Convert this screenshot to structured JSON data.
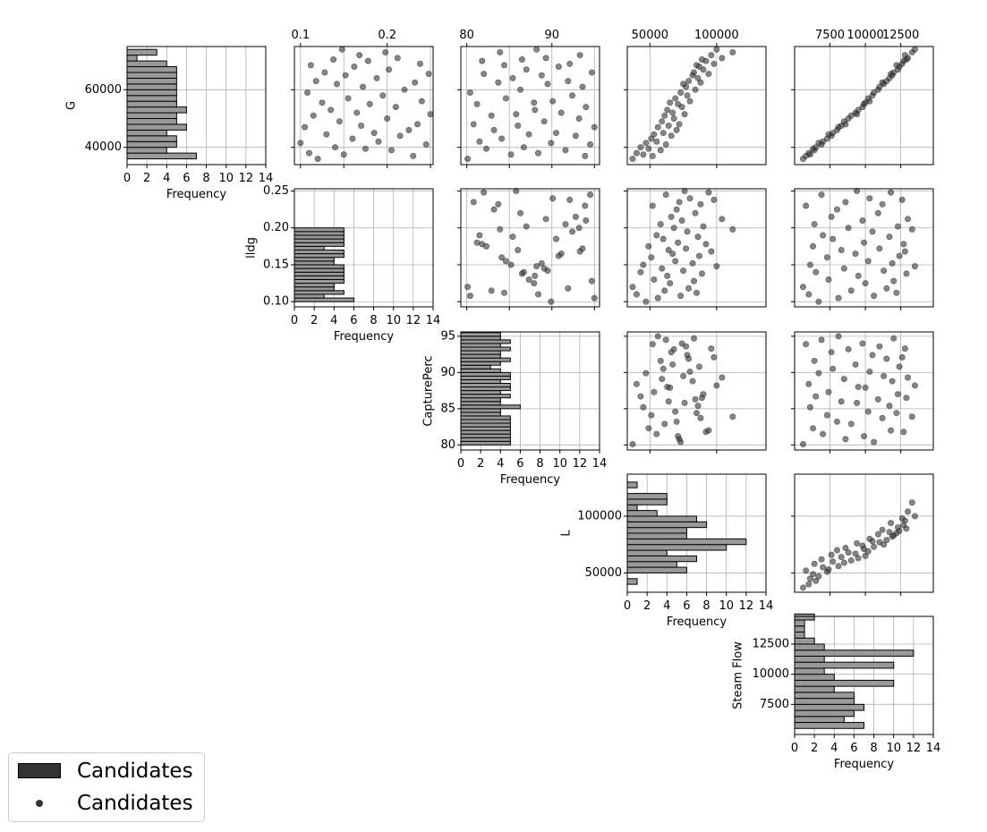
{
  "chart_data": {
    "type": "scatter",
    "title": "",
    "variables": [
      {
        "name": "G",
        "range": [
          34000,
          75000
        ],
        "ticks": [
          40000,
          60000
        ],
        "tick_labels": [
          "40000",
          "60000"
        ]
      },
      {
        "name": "lldg",
        "range": [
          0.093,
          0.253
        ],
        "ticks": [
          0.1,
          0.15,
          0.2,
          0.25
        ],
        "tick_labels": [
          "0.10",
          "0.15",
          "0.20",
          "0.25"
        ],
        "top_ticks": [
          0.1,
          0.2
        ],
        "top_tick_labels": [
          "0.1",
          "0.2"
        ]
      },
      {
        "name": "CapturePerc",
        "range": [
          79.3,
          95.6
        ],
        "ticks": [
          80,
          85,
          90,
          95
        ],
        "tick_labels": [
          "80",
          "85",
          "90",
          "95"
        ],
        "top_ticks": [
          80,
          90
        ],
        "top_tick_labels": [
          "80",
          "90"
        ]
      },
      {
        "name": "L",
        "range": [
          33000,
          137000
        ],
        "ticks": [
          50000,
          100000
        ],
        "tick_labels": [
          "50000",
          "100000"
        ]
      },
      {
        "name": "Steam Flow",
        "range": [
          5000,
          14800
        ],
        "ticks": [
          7500,
          10000,
          12500
        ],
        "tick_labels": [
          "7500",
          "10000",
          "12500"
        ]
      }
    ],
    "histograms": {
      "xlabel": "Frequency",
      "xlim": [
        0,
        14
      ],
      "xticks": [
        0,
        2,
        4,
        6,
        8,
        10,
        12,
        14
      ],
      "xtick_labels": [
        "0",
        "2",
        "4",
        "6",
        "8",
        "10",
        "12",
        "14"
      ],
      "G": {
        "bins_from": 36000,
        "bin_width": 2000,
        "counts": [
          7,
          4,
          5,
          5,
          4,
          6,
          5,
          5,
          6,
          5,
          5,
          5,
          5,
          5,
          5,
          5,
          4,
          1,
          3
        ]
      },
      "lldg": {
        "bins_from": 0.1,
        "bin_width": 0.005,
        "counts": [
          6,
          3,
          5,
          4,
          4,
          5,
          5,
          5,
          5,
          5,
          4,
          4,
          5,
          5,
          3,
          5,
          5,
          5,
          5,
          5
        ]
      },
      "CapturePerc": {
        "bins_from": 80,
        "bin_width": 0.5,
        "counts": [
          5,
          5,
          5,
          5,
          5,
          5,
          5,
          5,
          4,
          4,
          6,
          4,
          4,
          5,
          4,
          5,
          5,
          4,
          5,
          5,
          4,
          3,
          4,
          5,
          4,
          4,
          5,
          4,
          5,
          4,
          4
        ]
      },
      "L": {
        "bins_from": 40000,
        "bin_width": 5000,
        "counts": [
          1,
          0,
          6,
          5,
          7,
          4,
          10,
          12,
          6,
          6,
          8,
          7,
          3,
          1,
          4,
          4,
          0,
          1
        ]
      },
      "Steam Flow": {
        "bins_from": 5500,
        "bin_width": 500,
        "counts": [
          7,
          5,
          6,
          7,
          6,
          6,
          4,
          10,
          4,
          3,
          10,
          3,
          12,
          3,
          2,
          1,
          1,
          1,
          2
        ]
      }
    },
    "points": {
      "G": [
        36000,
        37000,
        37500,
        38000,
        39000,
        39500,
        40000,
        41000,
        41500,
        42000,
        43000,
        44000,
        44500,
        45000,
        46000,
        47000,
        47500,
        48000,
        49000,
        50000,
        51000,
        51500,
        52000,
        53000,
        54000,
        55000,
        55500,
        56000,
        57000,
        58000,
        59000,
        60000,
        61000,
        62000,
        62500,
        63000,
        64000,
        65000,
        65500,
        66000,
        67000,
        68000,
        68500,
        69000,
        70000,
        70500,
        71000,
        72000,
        73000,
        74000
      ],
      "lldg": [
        0.12,
        0.23,
        0.15,
        0.11,
        0.205,
        0.175,
        0.14,
        0.245,
        0.1,
        0.19,
        0.16,
        0.215,
        0.13,
        0.185,
        0.225,
        0.105,
        0.17,
        0.235,
        0.145,
        0.2,
        0.115,
        0.25,
        0.165,
        0.135,
        0.21,
        0.18,
        0.125,
        0.24,
        0.155,
        0.195,
        0.108,
        0.22,
        0.172,
        0.142,
        0.232,
        0.118,
        0.188,
        0.152,
        0.248,
        0.128,
        0.202,
        0.162,
        0.112,
        0.238,
        0.178,
        0.138,
        0.212,
        0.168,
        0.198,
        0.148
      ],
      "CapturePerc": [
        80.1,
        93.9,
        85.2,
        88.4,
        91.6,
        82.3,
        86.7,
        94.5,
        89.9,
        81.5,
        84.1,
        92.8,
        87.3,
        90.5,
        83.2,
        95.0,
        86.0,
        80.8,
        89.1,
        93.2,
        82.9,
        85.8,
        91.1,
        88.0,
        94.0,
        81.2,
        87.9,
        90.1,
        84.6,
        92.4,
        80.4,
        86.3,
        93.6,
        89.5,
        83.7,
        91.9,
        85.4,
        88.8,
        82.0,
        94.7,
        87.0,
        90.8,
        84.4,
        92.1,
        81.8,
        86.5,
        89.3,
        93.3,
        83.9,
        88.2
      ],
      "L": [
        37000,
        52000,
        45000,
        40000,
        58000,
        49000,
        43000,
        62000,
        47000,
        55000,
        51000,
        66000,
        53000,
        60000,
        70000,
        56000,
        64000,
        72000,
        59000,
        68000,
        61000,
        76000,
        67000,
        63000,
        74000,
        71000,
        65000,
        80000,
        69000,
        78000,
        73000,
        84000,
        77000,
        75000,
        88000,
        79000,
        86000,
        82000,
        94000,
        83000,
        90000,
        87000,
        85000,
        98000,
        92000,
        89000,
        104000,
        96000,
        112000,
        100000
      ],
      "Steam Flow": [
        5600,
        5800,
        6100,
        6000,
        6400,
        6300,
        6500,
        6900,
        6700,
        7000,
        7300,
        7600,
        7400,
        7700,
        8000,
        8100,
        8300,
        8600,
        8500,
        8800,
        9000,
        9400,
        9300,
        9500,
        9800,
        9900,
        10000,
        10300,
        10200,
        10500,
        10600,
        10900,
        11000,
        11300,
        11200,
        11500,
        11700,
        11900,
        11800,
        12000,
        12300,
        12400,
        12200,
        12600,
        12700,
        12900,
        13000,
        12800,
        13300,
        13500
      ]
    },
    "grid": true,
    "legend": {
      "placement": "bottom-left",
      "entries": [
        "Candidates",
        "Candidates"
      ]
    },
    "colors": {
      "bars": "#999999",
      "bar_edge": "#000000",
      "points": "#333333",
      "legend_patch": "#333333"
    }
  }
}
